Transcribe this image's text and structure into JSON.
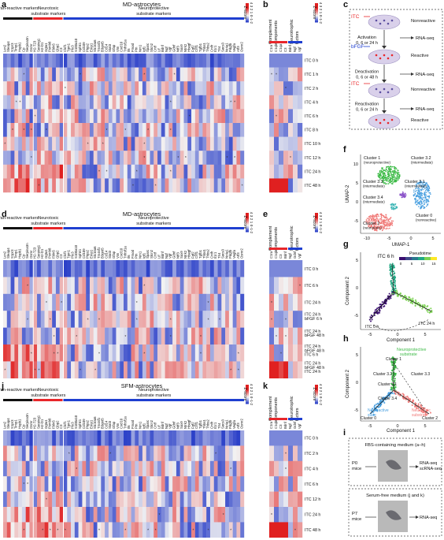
{
  "panel_labels": {
    "a": "a",
    "b": "b",
    "c": "c",
    "d": "d",
    "e": "e",
    "f": "f",
    "g": "g",
    "h": "h",
    "i": "i",
    "j": "j",
    "k": "k"
  },
  "colorbar": {
    "title": "Z-score",
    "ticks": [
      "-2",
      "-1",
      "0",
      "1",
      "2",
      "3",
      "4"
    ]
  },
  "colors": {
    "black": "#111111",
    "red": "#e8262a",
    "blue": "#1f3fd0",
    "neg": "#2a3fc8",
    "zero": "#f2f2f2",
    "pos": "#e02020",
    "umap_green": "#3cba46",
    "umap_pink": "#f07a78",
    "umap_blue": "#4aa0e0",
    "umap_purple": "#8a52c8",
    "umap_teal": "#3fb6b6"
  },
  "heatmaps": {
    "a": {
      "title": "MD-astrocytes",
      "groups": [
        "Pan-reactive markers",
        "Neurotoxic substrate markers",
        "Neuroprotective substrate markers"
      ],
      "rows": [
        "ITC 0 h",
        "ITC 1 h",
        "ITC 2 h",
        "ITC 4 h",
        "ITC 6 h",
        "ITC 8 h",
        "ITC 10 h",
        "ITC 12 h",
        "ITC 24 h",
        "ITC 48 h"
      ]
    },
    "b": {
      "groups": [
        "Complement components",
        "Neurotrophic factors"
      ],
      "genes": [
        "C1ra",
        "C1qb",
        "C1qa",
        "C3",
        "Bdnf",
        "Ngf",
        "Vgf"
      ]
    },
    "d": {
      "title": "MD-astrocytes",
      "groups": [
        "Pan-reactive markers",
        "Neurotoxic substrate markers",
        "Neuroprotective substrate markers"
      ],
      "rows": [
        "ITC 0 h",
        "ITC 6 h",
        "ITC 24 h",
        "ITC 24 h, bFGF 6 h",
        "ITC 24 h, bFGF 48 h",
        "ITC 24 h, bFGF 48 h, ITC 6 h",
        "ITC 24 h, bFGF 48 h, ITC 24 h"
      ]
    },
    "e": {
      "groups": [
        "Complement components",
        "Neurotrophic factors"
      ],
      "genes": [
        "C1ra",
        "C1qb",
        "C3",
        "Bdnf",
        "Ngf",
        "Gdnf",
        "Vgf"
      ]
    },
    "j": {
      "title": "SFM-astrocytes",
      "groups": [
        "Pan-reactive markers",
        "Neurotoxic substrate markers",
        "Neuroprotective substrate markers"
      ],
      "rows": [
        "ITC 0 h",
        "ITC 2 h",
        "ITC 4 h",
        "ITC 6 h",
        "ITC 12 h",
        "ITC 24 h",
        "ITC 48 h"
      ]
    },
    "k": {
      "groups": [
        "Complement components",
        "Neurotrophic factors"
      ],
      "genes": [
        "C1ra",
        "C1qb",
        "C3",
        "Bdnf",
        "Ngf",
        "Gdnf",
        "Vgf"
      ]
    }
  },
  "genes": {
    "pan": [
      "Lcn2",
      "Steap4",
      "S1pr3",
      "Timp1",
      "Hspb1",
      "Cp",
      "Serpina3n",
      "Osmr"
    ],
    "tox": [
      "H2-T23",
      "Serping1",
      "H2-D1",
      "Ggta1",
      "Psmb8",
      "Fbln5",
      "Gbp2",
      "C3"
    ],
    "pro": [
      "Clcf1",
      "Tgm1",
      "Ptx3",
      "S100a10",
      "Sphk1",
      "Cd109",
      "Ptgs2",
      "Emp1",
      "Slc10a6",
      "Tm4sf1",
      "B3gnt5",
      "Cd14",
      "Stat3",
      "Gfap",
      "Vim",
      "Cxcl10",
      "Tnfrsf1a",
      "Il6",
      "Fmod",
      "Ptn",
      "Nrn1",
      "Igf1",
      "Sparc",
      "Stcn2",
      "Cntf",
      "Lif",
      "Bdnf",
      "Ngf",
      "Vgf",
      "Gdnf",
      "Ntf3",
      "Sox9",
      "Ntrk2",
      "Hbegf",
      "Fgf2",
      "Crlf1",
      "Tgfb1",
      "Thbs1",
      "Thbs2",
      "Cntfr",
      "Il1r1",
      "Tlr4",
      "Socs3",
      "Nr4a1",
      "Pdgfb",
      "Vegfa",
      "Atf3",
      "Osmr2"
    ]
  },
  "diagram_c": {
    "steps": [
      "ITC",
      "bFGF",
      "ITC"
    ],
    "states": [
      "Nonreactive",
      "Reactive",
      "Nonreactive",
      "Reactive"
    ],
    "arrows": [
      "Activation\n0, 6 or 24 h",
      "Deactivation\n0, 6 or 48 h",
      "Reactivation\n0, 6 or 24 h"
    ],
    "output": "RNA-seq"
  },
  "chart_f": {
    "type": "scatter",
    "xlabel": "UMAP-1",
    "ylabel": "UMAP-2",
    "xticks": [
      "-10",
      "-5",
      "0",
      "5"
    ],
    "yticks": [
      "10",
      "5",
      "0",
      "-5"
    ],
    "clusters": [
      {
        "name": "Cluster 1",
        "note": "(neuroprotective)"
      },
      {
        "name": "Cluster 3.2",
        "note": "(intermediate)"
      },
      {
        "name": "Cluster 3.1",
        "note": "(intermediate)"
      },
      {
        "name": "Cluster 3.3",
        "note": "(intermediate)"
      },
      {
        "name": "Cluster 3.4",
        "note": "(intermediate)"
      },
      {
        "name": "Cluster 2",
        "note": "(neurotoxic)"
      },
      {
        "name": "Cluster 0",
        "note": "(nonreactive)"
      }
    ]
  },
  "chart_g": {
    "type": "trajectory",
    "title": "ITC 6 h",
    "legend_title": "Pseudotime",
    "legend_ticks": [
      "0",
      "5",
      "10",
      "15"
    ],
    "xlabel": "Component 1",
    "ylabel": "Component 2",
    "xticks": [
      "-5",
      "0",
      "5"
    ],
    "yticks": [
      "5",
      "0",
      "-5"
    ],
    "labels": [
      "ITC 0 h",
      "ITC 24 h"
    ]
  },
  "chart_h": {
    "type": "trajectory",
    "xlabel": "Component 1",
    "ylabel": "Component 2",
    "xticks": [
      "-5",
      "0",
      "5"
    ],
    "yticks": [
      "5",
      "0",
      "-5"
    ],
    "states": [
      "Neuroprotective substrate",
      "Nonreactive state",
      "Neurotoxic substrate"
    ],
    "clusters": [
      "Cluster 1",
      "Cluster 3.2",
      "Cluster 3.3",
      "Cluster 3.1",
      "Cluster 3.4",
      "Cluster 0",
      "Cluster 2"
    ]
  },
  "diagram_i": {
    "top_title": "FBS-containing medium (a–h)",
    "bottom_title": "Serum-free medium (j and k)",
    "top_source": "P0 mice",
    "bottom_source": "P7 mice",
    "top_out": "RNA-seq scRNA-seq",
    "bottom_out": "RNA-seq"
  }
}
